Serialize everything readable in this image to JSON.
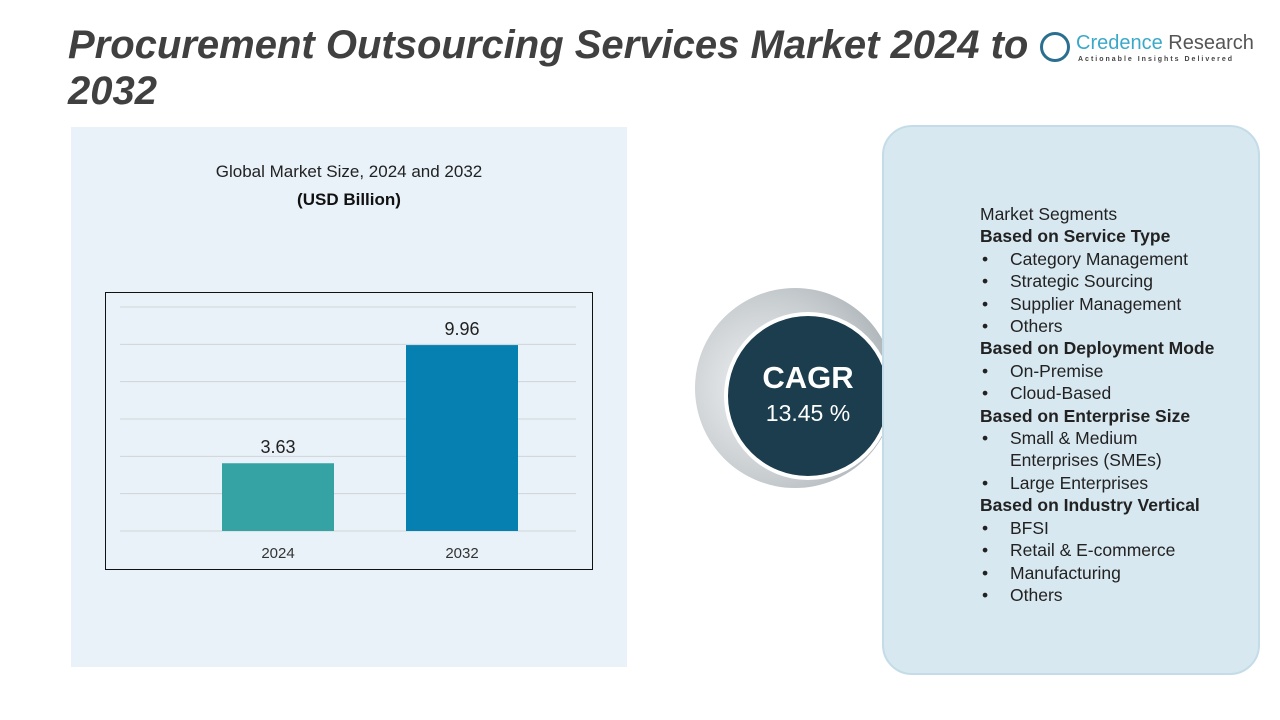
{
  "title": "Procurement Outsourcing Services Market 2024 to 2032",
  "logo": {
    "name_a": "Credence",
    "name_b": " Research",
    "tagline": "Actionable Insights Delivered"
  },
  "chart_data": {
    "type": "bar",
    "title": "Global Market Size, 2024 and 2032",
    "unit": "(USD Billion)",
    "categories": [
      "2024",
      "2032"
    ],
    "values": [
      3.63,
      9.96
    ],
    "value_labels": [
      "3.63",
      "9.96"
    ],
    "colors": [
      "#35a3a3",
      "#0680b0"
    ],
    "ylim": [
      0,
      12
    ],
    "grid": true
  },
  "cagr": {
    "label": "CAGR",
    "value": "13.45 %"
  },
  "segments": {
    "heading": "Market Segments",
    "groups": [
      {
        "title": "Based on Service Type",
        "items": [
          "Category Management",
          "Strategic Sourcing",
          "Supplier Management",
          "Others"
        ]
      },
      {
        "title": "Based on Deployment Mode",
        "items": [
          "On-Premise",
          "Cloud-Based"
        ]
      },
      {
        "title": "Based on Enterprise Size",
        "items": [
          "Small & Medium Enterprises (SMEs)",
          "Large Enterprises"
        ]
      },
      {
        "title": "Based on Industry Vertical",
        "items": [
          "BFSI",
          "Retail & E-commerce",
          "Manufacturing",
          "Others"
        ]
      }
    ]
  }
}
